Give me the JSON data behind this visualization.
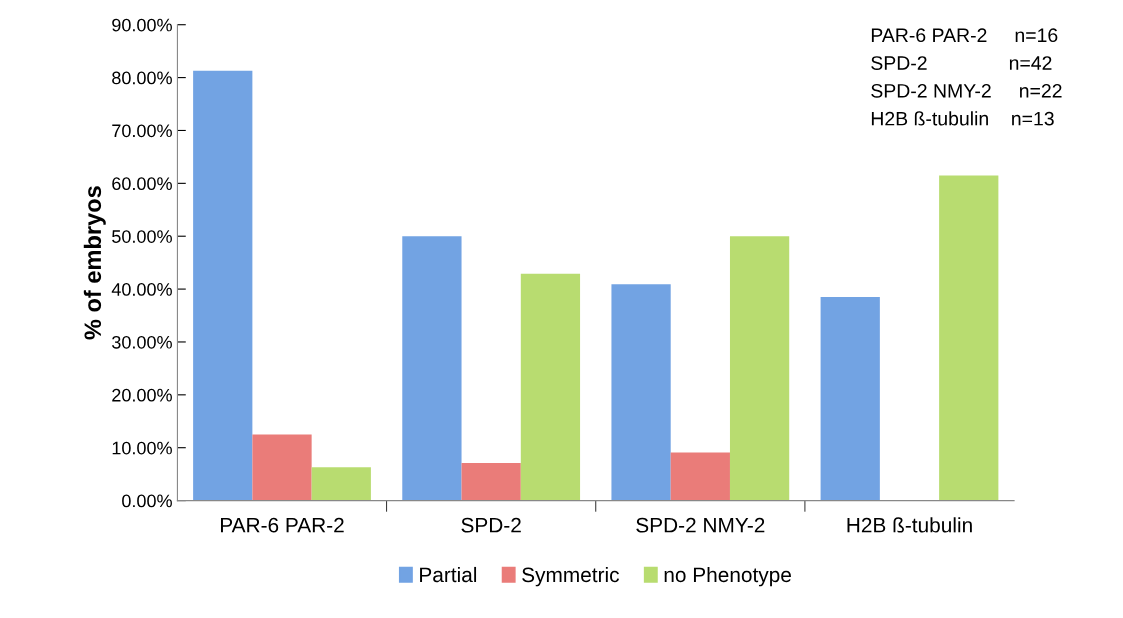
{
  "chart_data": {
    "type": "bar",
    "ylabel": "% of embryos",
    "categories": [
      "PAR-6 PAR-2",
      "SPD-2",
      "SPD-2 NMY-2",
      "H2B ß-tubulin"
    ],
    "series": [
      {
        "name": "Partial",
        "color": "#72a3e3",
        "values": [
          81.3,
          50.0,
          40.9,
          38.5
        ]
      },
      {
        "name": "Symmetric",
        "color": "#ea7c79",
        "values": [
          12.5,
          7.1,
          9.1,
          0
        ]
      },
      {
        "name": "no Phenotype",
        "color": "#b8dc70",
        "values": [
          6.3,
          42.9,
          50.0,
          61.5
        ]
      }
    ],
    "ylim": [
      0,
      90
    ],
    "yticks": [
      {
        "value": 0,
        "label": "0.00%"
      },
      {
        "value": 10,
        "label": "10.00%"
      },
      {
        "value": 20,
        "label": "20.00%"
      },
      {
        "value": 30,
        "label": "30.00%"
      },
      {
        "value": 40,
        "label": "40.00%"
      },
      {
        "value": 50,
        "label": "50.00%"
      },
      {
        "value": 60,
        "label": "60.00%"
      },
      {
        "value": 70,
        "label": "70.00%"
      },
      {
        "value": 80,
        "label": "80.00%"
      },
      {
        "value": 90,
        "label": "90.00%"
      }
    ],
    "annotations": [
      "PAR-6 PAR-2     n=16",
      "SPD-2               n=42",
      "SPD-2 NMY-2     n=22",
      "H2B ß-tubulin    n=13"
    ],
    "legend": "bottom",
    "grid": false
  }
}
